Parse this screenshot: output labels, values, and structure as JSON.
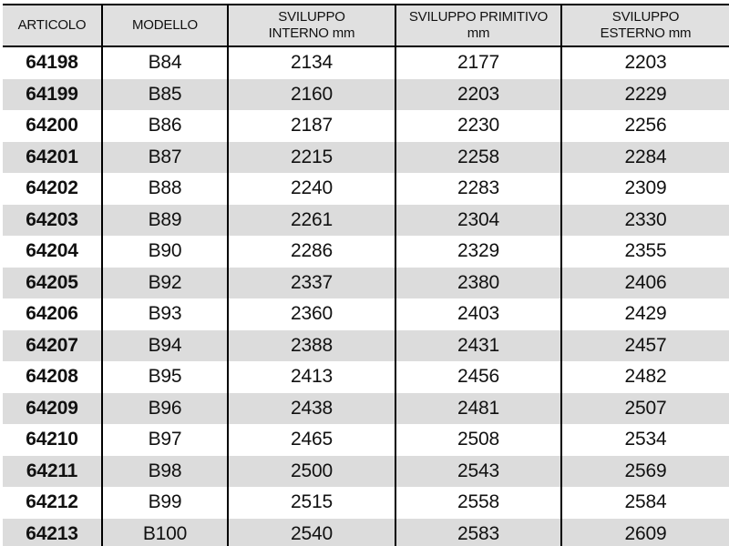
{
  "table": {
    "title": "catalog-specification-table",
    "columns": [
      {
        "key": "articolo",
        "lines": [
          "ARTICOLO"
        ]
      },
      {
        "key": "modello",
        "lines": [
          "MODELLO"
        ]
      },
      {
        "key": "sviluppo_interno",
        "lines": [
          "SVILUPPO",
          "INTERNO mm"
        ]
      },
      {
        "key": "sviluppo_primitivo",
        "lines": [
          "SVILUPPO PRIMITIVO",
          "mm"
        ]
      },
      {
        "key": "sviluppo_esterno",
        "lines": [
          "SVILUPPO",
          "ESTERNO mm"
        ]
      }
    ],
    "rows": [
      [
        "64198",
        "B84",
        "2134",
        "2177",
        "2203"
      ],
      [
        "64199",
        "B85",
        "2160",
        "2203",
        "2229"
      ],
      [
        "64200",
        "B86",
        "2187",
        "2230",
        "2256"
      ],
      [
        "64201",
        "B87",
        "2215",
        "2258",
        "2284"
      ],
      [
        "64202",
        "B88",
        "2240",
        "2283",
        "2309"
      ],
      [
        "64203",
        "B89",
        "2261",
        "2304",
        "2330"
      ],
      [
        "64204",
        "B90",
        "2286",
        "2329",
        "2355"
      ],
      [
        "64205",
        "B92",
        "2337",
        "2380",
        "2406"
      ],
      [
        "64206",
        "B93",
        "2360",
        "2403",
        "2429"
      ],
      [
        "64207",
        "B94",
        "2388",
        "2431",
        "2457"
      ],
      [
        "64208",
        "B95",
        "2413",
        "2456",
        "2482"
      ],
      [
        "64209",
        "B96",
        "2438",
        "2481",
        "2507"
      ],
      [
        "64210",
        "B97",
        "2465",
        "2508",
        "2534"
      ],
      [
        "64211",
        "B98",
        "2500",
        "2543",
        "2569"
      ],
      [
        "64212",
        "B99",
        "2515",
        "2558",
        "2584"
      ],
      [
        "64213",
        "B100",
        "2540",
        "2583",
        "2609"
      ]
    ]
  },
  "colors": {
    "header_bg": "#e0e0e0",
    "row_alt_bg": "#dcdcdc",
    "row_bg": "#ffffff",
    "border": "#000000",
    "text": "#111111"
  }
}
